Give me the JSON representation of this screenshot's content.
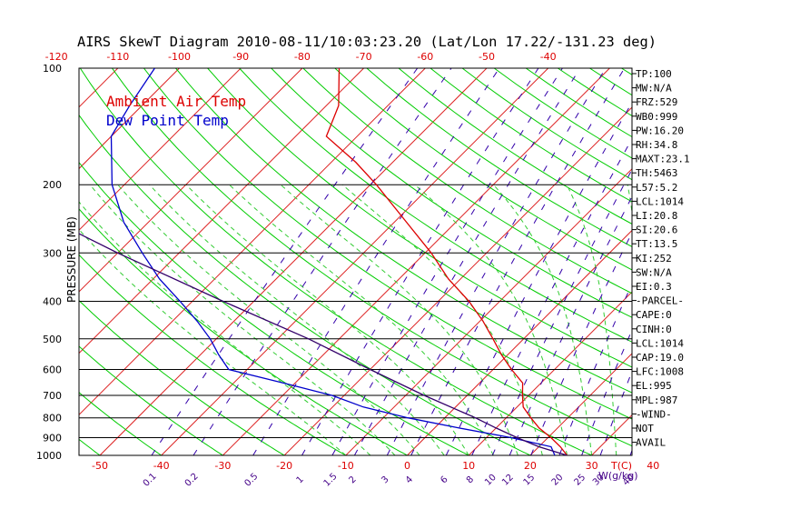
{
  "chart_data": {
    "type": "line",
    "title": "AIRS SkewT Diagram 2010-08-11/10:03:23.20 (Lat/Lon 17.22/-131.23 deg)",
    "ylabel": "PRESSURE (MB)",
    "xlabel_right": "T(C)",
    "w_axis_label": "W(g/kg)",
    "y_scale": "log",
    "ylim": [
      1000,
      100
    ],
    "legend": {
      "placement": "top-left",
      "entries": [
        "Ambient Air Temp",
        "Dew Point Temp"
      ]
    },
    "pressure_ticks": [
      "100",
      "200",
      "300",
      "400",
      "500",
      "600",
      "700",
      "800",
      "900",
      "1000"
    ],
    "top_temp_ticks": [
      "-120",
      "-110",
      "-100",
      "-90",
      "-80",
      "-70",
      "-60",
      "-50",
      "-40"
    ],
    "bottom_temp_ticks": [
      "-50",
      "-40",
      "-30",
      "-20",
      "-10",
      "0",
      "10",
      "20",
      "30",
      "40"
    ],
    "mixing_ratio_ticks": [
      "0.1",
      "0.2",
      "0.5",
      "1",
      "1.5",
      "2",
      "3",
      "4",
      "6",
      "8",
      "10",
      "12",
      "15",
      "20",
      "25",
      "30",
      "40"
    ],
    "series": [
      {
        "name": "Ambient Air Temp",
        "color": "#dd0000",
        "points": [
          {
            "p": 1000,
            "t": 26.0
          },
          {
            "p": 950,
            "t": 23.5
          },
          {
            "p": 900,
            "t": 20.5
          },
          {
            "p": 850,
            "t": 17.0
          },
          {
            "p": 800,
            "t": 14.0
          },
          {
            "p": 750,
            "t": 11.0
          },
          {
            "p": 700,
            "t": 9.0
          },
          {
            "p": 650,
            "t": 7.0
          },
          {
            "p": 600,
            "t": 3.0
          },
          {
            "p": 550,
            "t": -1.0
          },
          {
            "p": 500,
            "t": -5.0
          },
          {
            "p": 450,
            "t": -9.5
          },
          {
            "p": 400,
            "t": -15.0
          },
          {
            "p": 350,
            "t": -22.0
          },
          {
            "p": 300,
            "t": -29.0
          },
          {
            "p": 250,
            "t": -38.0
          },
          {
            "p": 200,
            "t": -49.0
          },
          {
            "p": 175,
            "t": -56.0
          },
          {
            "p": 150,
            "t": -65.0
          },
          {
            "p": 125,
            "t": -68.0
          },
          {
            "p": 100,
            "t": -74.0
          }
        ]
      },
      {
        "name": "Dew Point Temp",
        "color": "#0000cc",
        "points": [
          {
            "p": 1000,
            "t": 24.0
          },
          {
            "p": 950,
            "t": 22.0
          },
          {
            "p": 900,
            "t": 14.0
          },
          {
            "p": 850,
            "t": 4.0
          },
          {
            "p": 800,
            "t": -6.0
          },
          {
            "p": 750,
            "t": -15.0
          },
          {
            "p": 700,
            "t": -22.0
          },
          {
            "p": 650,
            "t": -32.0
          },
          {
            "p": 600,
            "t": -43.0
          },
          {
            "p": 550,
            "t": -47.0
          },
          {
            "p": 500,
            "t": -51.0
          },
          {
            "p": 450,
            "t": -56.0
          },
          {
            "p": 400,
            "t": -62.0
          },
          {
            "p": 350,
            "t": -69.0
          },
          {
            "p": 300,
            "t": -76.0
          },
          {
            "p": 250,
            "t": -84.0
          },
          {
            "p": 200,
            "t": -92.0
          },
          {
            "p": 150,
            "t": -100.0
          },
          {
            "p": 125,
            "t": -102.0
          },
          {
            "p": 100,
            "t": -104.0
          }
        ]
      },
      {
        "name": "",
        "color": "#33006a",
        "points": [
          {
            "p": 1000,
            "t": 26.0
          },
          {
            "p": 950,
            "t": 20.0
          },
          {
            "p": 900,
            "t": 15.0
          },
          {
            "p": 850,
            "t": 10.0
          },
          {
            "p": 800,
            "t": 5.0
          },
          {
            "p": 700,
            "t": -7.0
          },
          {
            "p": 600,
            "t": -20.0
          },
          {
            "p": 500,
            "t": -35.0
          },
          {
            "p": 400,
            "t": -55.0
          },
          {
            "p": 300,
            "t": -80.0
          },
          {
            "p": 250,
            "t": -95.0
          },
          {
            "p": 200,
            "t": -110.0
          },
          {
            "p": 150,
            "t": -126.0
          },
          {
            "p": 100,
            "t": -146.0
          }
        ]
      }
    ]
  },
  "indices": [
    "TP:100",
    "MW:N/A",
    "FRZ:529",
    "WB0:999",
    "PW:16.20",
    "RH:34.8",
    "MAXT:23.1",
    "TH:5463",
    "L57:5.2",
    "LCL:1014",
    "LI:20.8",
    "SI:20.6",
    "TT:13.5",
    "KI:252",
    "SW:N/A",
    "EI:0.3",
    "-PARCEL-",
    "CAPE:0",
    "CINH:0",
    "LCL:1014",
    "CAP:19.0",
    "LFC:1008",
    "EL:995",
    "MPL:987",
    "-WIND-",
    "NOT",
    "AVAIL"
  ],
  "colors": {
    "isotherm": "#dd2222",
    "dry_adiabat": "#00cc00",
    "moist_adiabat": "#33cc33",
    "mixing_ratio": "#3300aa",
    "isobar": "#000000",
    "temp_tick": "#dd0000",
    "mixing_tick": "#440088"
  }
}
